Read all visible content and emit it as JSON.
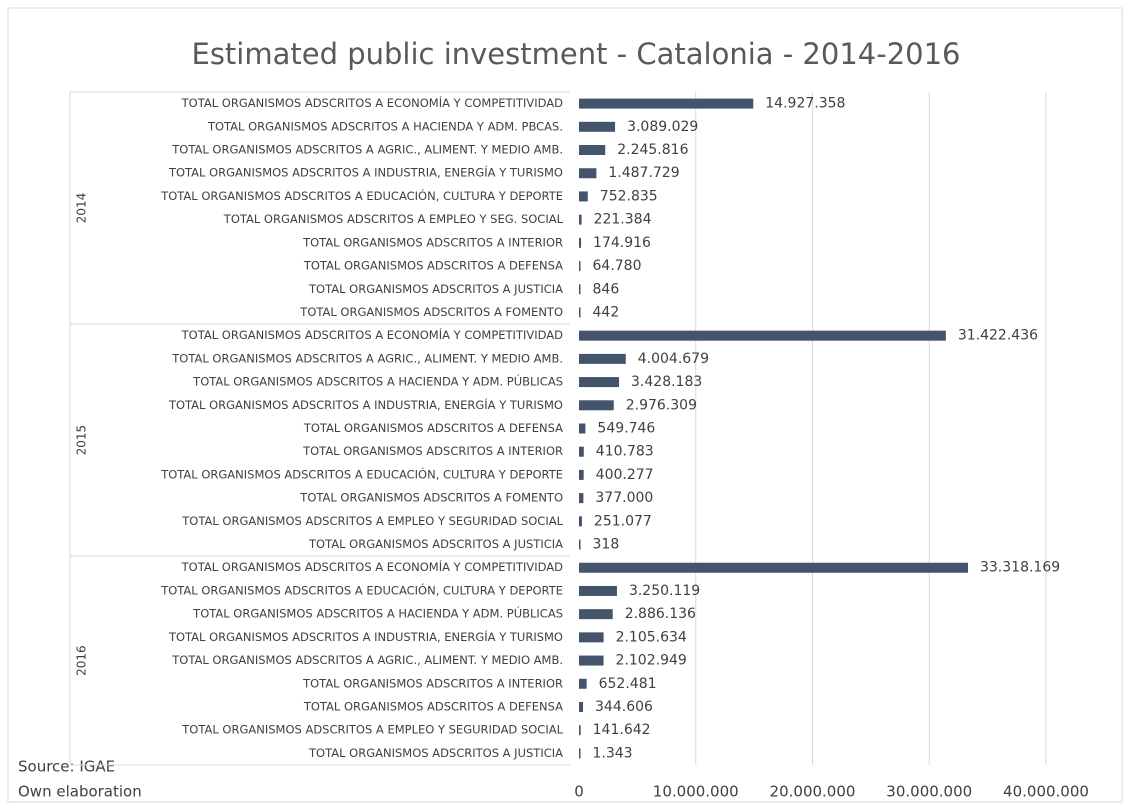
{
  "chart_data": {
    "type": "bar",
    "title": "Estimated public investment - Catalonia - 2014-2016",
    "color": "#44546a",
    "grid": true,
    "xlim": [
      0,
      40000000
    ],
    "xticks": [
      0,
      {
        "value": 10000000,
        "label": "10.000.000"
      },
      {
        "value": 20000000,
        "label": "20.000.000"
      },
      {
        "value": 30000000,
        "label": "30.000.000"
      },
      {
        "value": 40000000,
        "label": "40.000.000"
      }
    ],
    "groups": [
      {
        "name": "2014",
        "categories": [
          "TOTAL ORGANISMOS ADSCRITOS A ECONOMÍA Y COMPETITIVIDAD",
          "TOTAL ORGANISMOS ADSCRITOS A HACIENDA Y ADM. PBCAS.",
          "TOTAL ORGANISMOS ADSCRITOS A AGRIC., ALIMENT. Y MEDIO AMB.",
          "TOTAL ORGANISMOS ADSCRITOS A INDUSTRIA, ENERGÍA Y TURISMO",
          "TOTAL ORGANISMOS ADSCRITOS A EDUCACIÓN, CULTURA Y DEPORTE",
          "TOTAL ORGANISMOS ADSCRITOS A EMPLEO Y SEG. SOCIAL",
          "TOTAL ORGANISMOS ADSCRITOS A INTERIOR",
          "TOTAL ORGANISMOS ADSCRITOS A DEFENSA",
          "TOTAL ORGANISMOS ADSCRITOS A JUSTICIA",
          "TOTAL ORGANISMOS ADSCRITOS A FOMENTO"
        ],
        "values": [
          14927358,
          3089029,
          2245816,
          1487729,
          752835,
          221384,
          174916,
          64780,
          846,
          442
        ],
        "value_labels": [
          "14.927.358",
          "3.089.029",
          "2.245.816",
          "1.487.729",
          "752.835",
          "221.384",
          "174.916",
          "64.780",
          "846",
          "442"
        ]
      },
      {
        "name": "2015",
        "categories": [
          "TOTAL ORGANISMOS ADSCRITOS A ECONOMÍA Y COMPETITIVIDAD",
          "TOTAL ORGANISMOS ADSCRITOS A AGRIC., ALIMENT. Y MEDIO AMB.",
          "TOTAL ORGANISMOS ADSCRITOS A HACIENDA Y ADM. PÚBLICAS",
          "TOTAL ORGANISMOS ADSCRITOS A INDUSTRIA, ENERGÍA Y TURISMO",
          "TOTAL ORGANISMOS ADSCRITOS A DEFENSA",
          "TOTAL ORGANISMOS ADSCRITOS A INTERIOR",
          "TOTAL ORGANISMOS ADSCRITOS A EDUCACIÓN, CULTURA Y DEPORTE",
          "TOTAL ORGANISMOS ADSCRITOS A FOMENTO",
          "TOTAL ORGANISMOS ADSCRITOS A EMPLEO Y SEGURIDAD SOCIAL",
          "TOTAL ORGANISMOS ADSCRITOS A JUSTICIA"
        ],
        "values": [
          31422436,
          4004679,
          3428183,
          2976309,
          549746,
          410783,
          400277,
          377000,
          251077,
          318
        ],
        "value_labels": [
          "31.422.436",
          "4.004.679",
          "3.428.183",
          "2.976.309",
          "549.746",
          "410.783",
          "400.277",
          "377.000",
          "251.077",
          "318"
        ]
      },
      {
        "name": "2016",
        "categories": [
          "TOTAL ORGANISMOS ADSCRITOS A ECONOMÍA Y COMPETITIVIDAD",
          "TOTAL ORGANISMOS ADSCRITOS A EDUCACIÓN, CULTURA Y DEPORTE",
          "TOTAL ORGANISMOS ADSCRITOS A HACIENDA Y ADM. PÚBLICAS",
          "TOTAL ORGANISMOS ADSCRITOS A INDUSTRIA, ENERGÍA Y TURISMO",
          "TOTAL ORGANISMOS ADSCRITOS A AGRIC., ALIMENT. Y MEDIO AMB.",
          "TOTAL ORGANISMOS ADSCRITOS A INTERIOR",
          "TOTAL ORGANISMOS ADSCRITOS A DEFENSA",
          "TOTAL ORGANISMOS ADSCRITOS A EMPLEO Y SEGURIDAD SOCIAL",
          "TOTAL ORGANISMOS ADSCRITOS A JUSTICIA"
        ],
        "values": [
          33318169,
          3250119,
          2886136,
          2105634,
          2102949,
          652481,
          344606,
          141642,
          1343
        ],
        "value_labels": [
          "33.318.169",
          "3.250.119",
          "2.886.136",
          "2.105.634",
          "2.102.949",
          "652.481",
          "344.606",
          "141.642",
          "1.343"
        ]
      }
    ],
    "annotations": [
      "Source: IGAE",
      "Own elaboration"
    ]
  }
}
